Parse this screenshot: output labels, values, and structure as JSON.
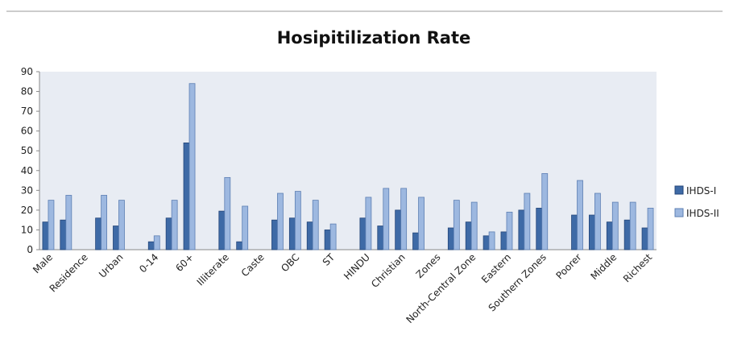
{
  "chart_data": {
    "type": "bar",
    "title": "Hosipitilization  Rate",
    "categories": [
      "Male",
      null,
      "Residence",
      null,
      "Urban",
      null,
      "0-14",
      null,
      "60+",
      null,
      "Illiterate",
      null,
      "Caste",
      null,
      "OBC",
      null,
      "ST",
      null,
      "HINDU",
      null,
      "Christian",
      null,
      "Zones",
      null,
      "North-Central Zone",
      null,
      "Eastern",
      null,
      "Southern Zones",
      null,
      "Poorer",
      null,
      "Middle",
      null,
      "Richest"
    ],
    "series": [
      {
        "name": "IHDS-I",
        "color": "#3e6aa6",
        "values": [
          14,
          15,
          null,
          16,
          12,
          null,
          4,
          16,
          54,
          null,
          19.5,
          4,
          null,
          15,
          16,
          14,
          10,
          null,
          16,
          12,
          20,
          8.5,
          null,
          11,
          14,
          7,
          9,
          20,
          21,
          null,
          17.5,
          17.5,
          14,
          15,
          11
        ]
      },
      {
        "name": "IHDS-II",
        "color": "#9db8e0",
        "values": [
          25,
          27.5,
          null,
          27.5,
          25,
          null,
          7,
          25,
          84,
          null,
          36.5,
          22,
          null,
          28.5,
          29.5,
          25,
          13,
          null,
          26.5,
          31,
          31,
          26.5,
          null,
          25,
          24,
          9,
          19,
          28.5,
          38.5,
          null,
          35,
          28.5,
          24,
          24,
          21
        ]
      }
    ],
    "ylim": [
      0,
      90
    ],
    "yticks": [
      0,
      10,
      20,
      30,
      40,
      50,
      60,
      70,
      80,
      90
    ],
    "legend": "right"
  }
}
